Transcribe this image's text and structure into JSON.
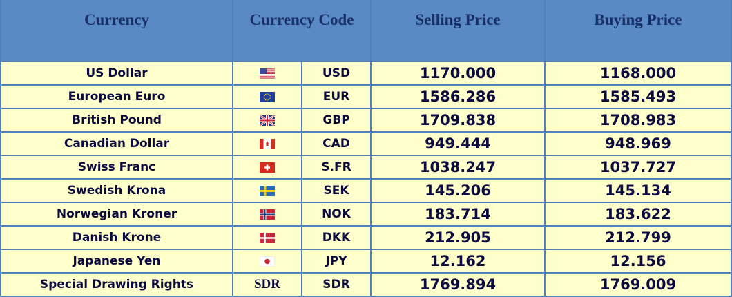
{
  "header": {
    "currency": "Currency",
    "code": "Currency Code",
    "selling": "Selling Price",
    "buying": "Buying Price"
  },
  "rows": [
    {
      "currency": "US Dollar",
      "code": "USD",
      "selling": "1170.000",
      "buying": "1168.000"
    },
    {
      "currency": "European Euro",
      "code": "EUR",
      "selling": "1586.286",
      "buying": "1585.493"
    },
    {
      "currency": "British Pound",
      "code": "GBP",
      "selling": "1709.838",
      "buying": "1708.983"
    },
    {
      "currency": "Canadian Dollar",
      "code": "CAD",
      "selling": "949.444",
      "buying": "948.969"
    },
    {
      "currency": "Swiss Franc",
      "code": "S.FR",
      "selling": "1038.247",
      "buying": "1037.727"
    },
    {
      "currency": "Swedish Krona",
      "code": "SEK",
      "selling": "145.206",
      "buying": "145.134"
    },
    {
      "currency": "Norwegian Kroner",
      "code": "NOK",
      "selling": "183.714",
      "buying": "183.622"
    },
    {
      "currency": "Danish Krone",
      "code": "DKK",
      "selling": "212.905",
      "buying": "212.799"
    },
    {
      "currency": "Japanese Yen",
      "code": "JPY",
      "selling": "12.162",
      "buying": "12.156"
    },
    {
      "currency": "Special Drawing Rights",
      "flag_text": "SDR",
      "code": "SDR",
      "selling": "1769.894",
      "buying": "1769.009"
    }
  ]
}
